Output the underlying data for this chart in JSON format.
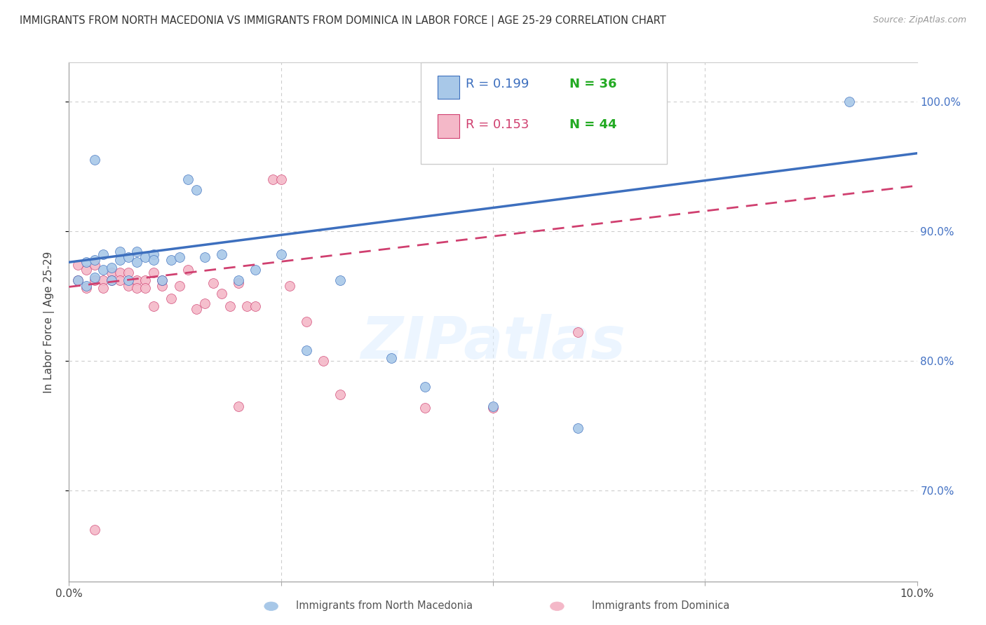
{
  "title": "IMMIGRANTS FROM NORTH MACEDONIA VS IMMIGRANTS FROM DOMINICA IN LABOR FORCE | AGE 25-29 CORRELATION CHART",
  "source": "Source: ZipAtlas.com",
  "ylabel": "In Labor Force | Age 25-29",
  "xlim": [
    0.0,
    0.1
  ],
  "ylim": [
    0.63,
    1.03
  ],
  "blue_R": 0.199,
  "blue_N": 36,
  "pink_R": 0.153,
  "pink_N": 44,
  "blue_color": "#a8c8e8",
  "pink_color": "#f4b8c8",
  "blue_line_color": "#3d6fbe",
  "pink_line_color": "#d04070",
  "grid_color": "#cccccc",
  "right_axis_color": "#4472c4",
  "watermark": "ZIPatlas",
  "blue_scatter_x": [
    0.001,
    0.002,
    0.002,
    0.003,
    0.003,
    0.004,
    0.004,
    0.005,
    0.005,
    0.006,
    0.006,
    0.007,
    0.007,
    0.008,
    0.008,
    0.009,
    0.01,
    0.01,
    0.011,
    0.012,
    0.013,
    0.014,
    0.015,
    0.016,
    0.018,
    0.02,
    0.022,
    0.025,
    0.028,
    0.032,
    0.038,
    0.042,
    0.05,
    0.06,
    0.092,
    0.003
  ],
  "blue_scatter_y": [
    0.862,
    0.876,
    0.858,
    0.878,
    0.864,
    0.882,
    0.87,
    0.872,
    0.862,
    0.884,
    0.878,
    0.88,
    0.862,
    0.884,
    0.876,
    0.88,
    0.882,
    0.878,
    0.862,
    0.878,
    0.88,
    0.94,
    0.932,
    0.88,
    0.882,
    0.862,
    0.87,
    0.882,
    0.808,
    0.862,
    0.802,
    0.78,
    0.765,
    0.748,
    1.0,
    0.955
  ],
  "pink_scatter_x": [
    0.001,
    0.001,
    0.002,
    0.002,
    0.003,
    0.003,
    0.004,
    0.004,
    0.005,
    0.005,
    0.006,
    0.006,
    0.007,
    0.007,
    0.008,
    0.008,
    0.009,
    0.009,
    0.01,
    0.01,
    0.011,
    0.011,
    0.012,
    0.013,
    0.014,
    0.015,
    0.016,
    0.017,
    0.018,
    0.019,
    0.02,
    0.021,
    0.022,
    0.024,
    0.025,
    0.026,
    0.028,
    0.03,
    0.032,
    0.042,
    0.05,
    0.06,
    0.003,
    0.02
  ],
  "pink_scatter_y": [
    0.862,
    0.874,
    0.87,
    0.856,
    0.862,
    0.874,
    0.862,
    0.856,
    0.868,
    0.862,
    0.868,
    0.862,
    0.858,
    0.868,
    0.862,
    0.856,
    0.862,
    0.856,
    0.868,
    0.842,
    0.858,
    0.862,
    0.848,
    0.858,
    0.87,
    0.84,
    0.844,
    0.86,
    0.852,
    0.842,
    0.86,
    0.842,
    0.842,
    0.94,
    0.94,
    0.858,
    0.83,
    0.8,
    0.774,
    0.764,
    0.764,
    0.822,
    0.67,
    0.765
  ],
  "legend_blue_text": "R = 0.199   N = 36",
  "legend_pink_text": "R = 0.153   N = 44",
  "bottom_legend_blue": "Immigrants from North Macedonia",
  "bottom_legend_pink": "Immigrants from Dominica"
}
